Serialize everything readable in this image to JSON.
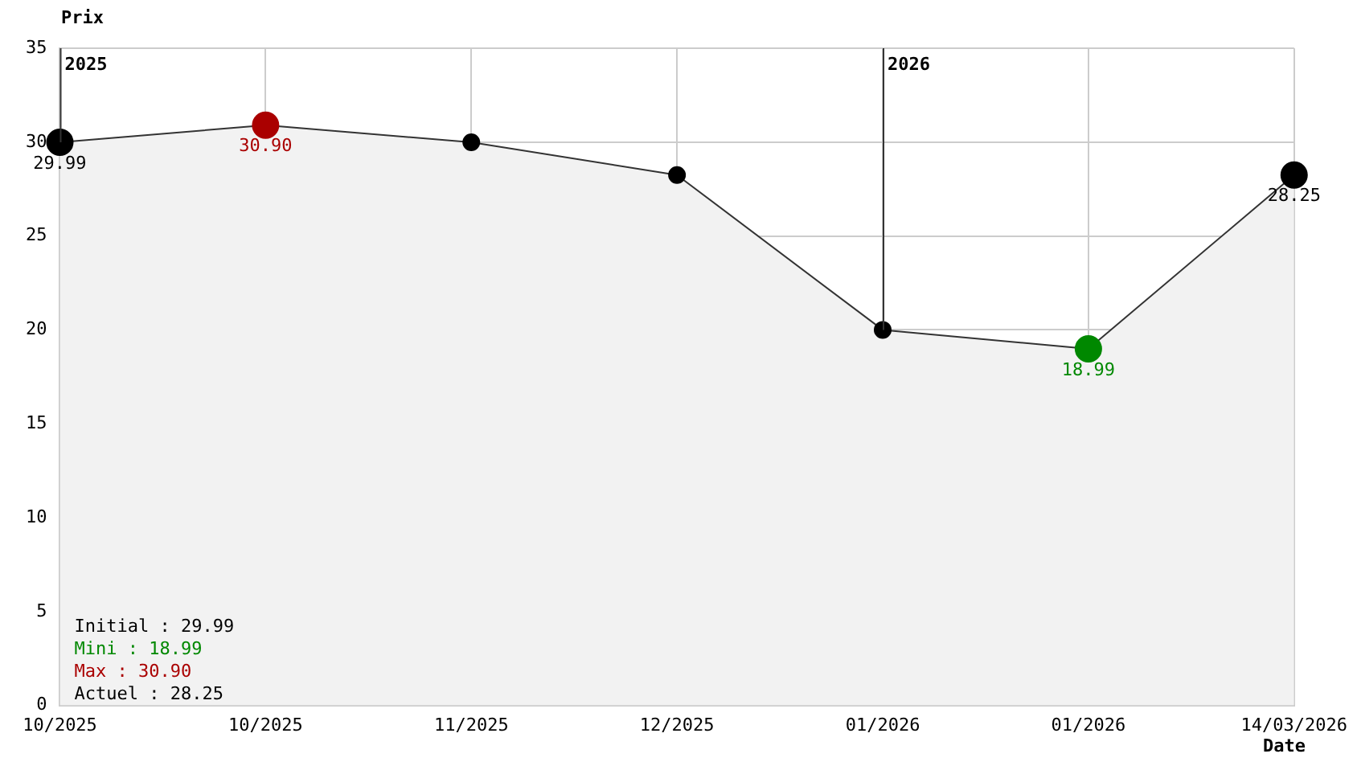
{
  "chart_data": {
    "type": "area",
    "xlabel": "Date",
    "ylabel": "Prix",
    "categories": [
      "10/2025",
      "10/2025",
      "11/2025",
      "12/2025",
      "01/2026",
      "01/2026",
      "14/03/2026"
    ],
    "series": [
      {
        "color": "#333333",
        "values": [
          29.99,
          30.9,
          29.99,
          28.25,
          20.0,
          18.99,
          28.25
        ],
        "colors": [
          "#000000",
          "#aa0000",
          "#000000",
          "#000000",
          "#000000",
          "#008800",
          "#000000"
        ],
        "value_labels": [
          "29.99",
          "30.90",
          null,
          null,
          null,
          "18.99",
          "28.25"
        ]
      }
    ],
    "ylim": [
      0,
      35
    ],
    "yticks": [
      0,
      5,
      10,
      15,
      20,
      25,
      30,
      35
    ],
    "grid": true,
    "legend": false,
    "marker": "circle",
    "ref_lines": [
      {
        "axis": "x",
        "value": "10/2025",
        "label": "2025"
      },
      {
        "axis": "x",
        "value": "01/2026",
        "label": "2026"
      }
    ],
    "annotations": [
      "Initial : 29.99",
      "Mini : 18.99",
      "Max : 30.90",
      "Actuel : 28.25"
    ]
  }
}
